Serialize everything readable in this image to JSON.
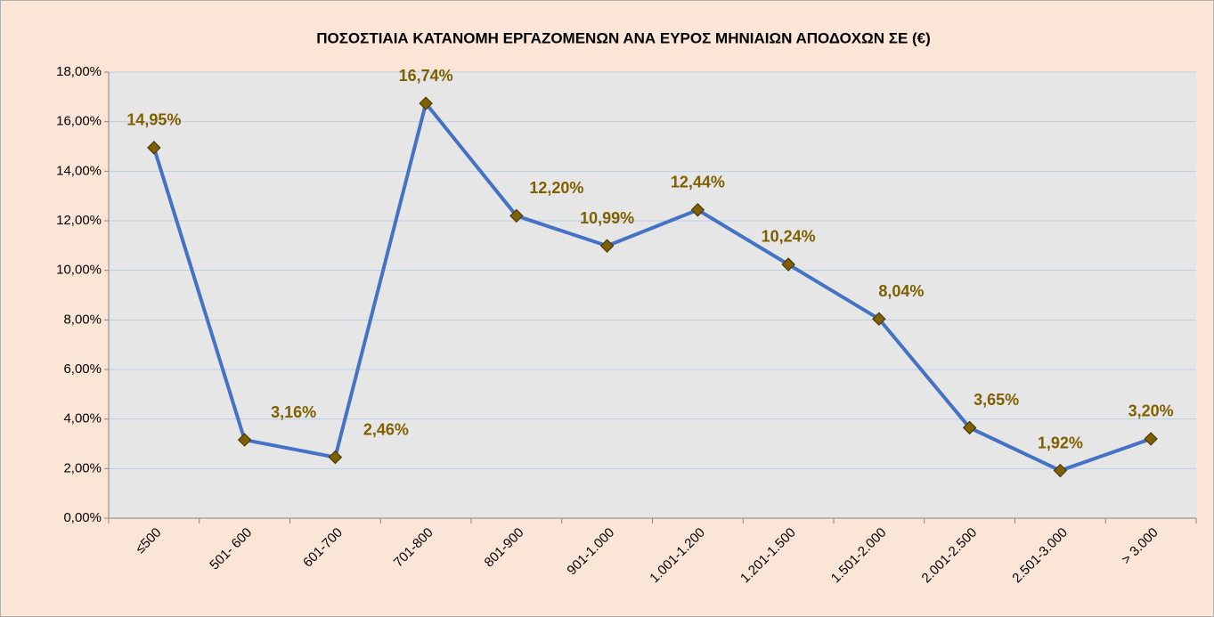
{
  "chart_data": {
    "type": "line",
    "title": "ΠΟΣΟΣΤΙΑΙΑ ΚΑΤΑΝΟΜΗ ΕΡΓΑΖΟΜΕΝΩΝ ΑΝΑ ΕΥΡΟΣ ΜΗΝΙΑΙΩΝ ΑΠΟΔΟΧΩΝ ΣΕ (€)",
    "categories": [
      "≤500",
      "501- 600",
      "601-700",
      "701-800",
      "801-900",
      "901-1.000",
      "1.001-1.200",
      "1.201-1.500",
      "1.501-2.000",
      "2.001-2.500",
      "2.501-3.000",
      "> 3.000"
    ],
    "values": [
      14.95,
      3.16,
      2.46,
      16.74,
      12.2,
      10.99,
      12.44,
      10.24,
      8.04,
      3.65,
      1.92,
      3.2
    ],
    "value_labels": [
      "14,95%",
      "3,16%",
      "2,46%",
      "16,74%",
      "12,20%",
      "10,99%",
      "12,44%",
      "10,24%",
      "8,04%",
      "3,65%",
      "1,92%",
      "3,20%"
    ],
    "color": "#4472c4",
    "marker_color": "#7f6000",
    "ylim": [
      0,
      18
    ],
    "yticks": [
      {
        "value": 0,
        "label": "0,00%"
      },
      {
        "value": 2,
        "label": "2,00%"
      },
      {
        "value": 4,
        "label": "4,00%"
      },
      {
        "value": 6,
        "label": "6,00%"
      },
      {
        "value": 8,
        "label": "8,00%"
      },
      {
        "value": 10,
        "label": "10,00%"
      },
      {
        "value": 12,
        "label": "12,00%"
      },
      {
        "value": 14,
        "label": "14,00%"
      },
      {
        "value": 16,
        "label": "16,00%"
      },
      {
        "value": 18,
        "label": "18,00%"
      }
    ],
    "grid": true
  }
}
